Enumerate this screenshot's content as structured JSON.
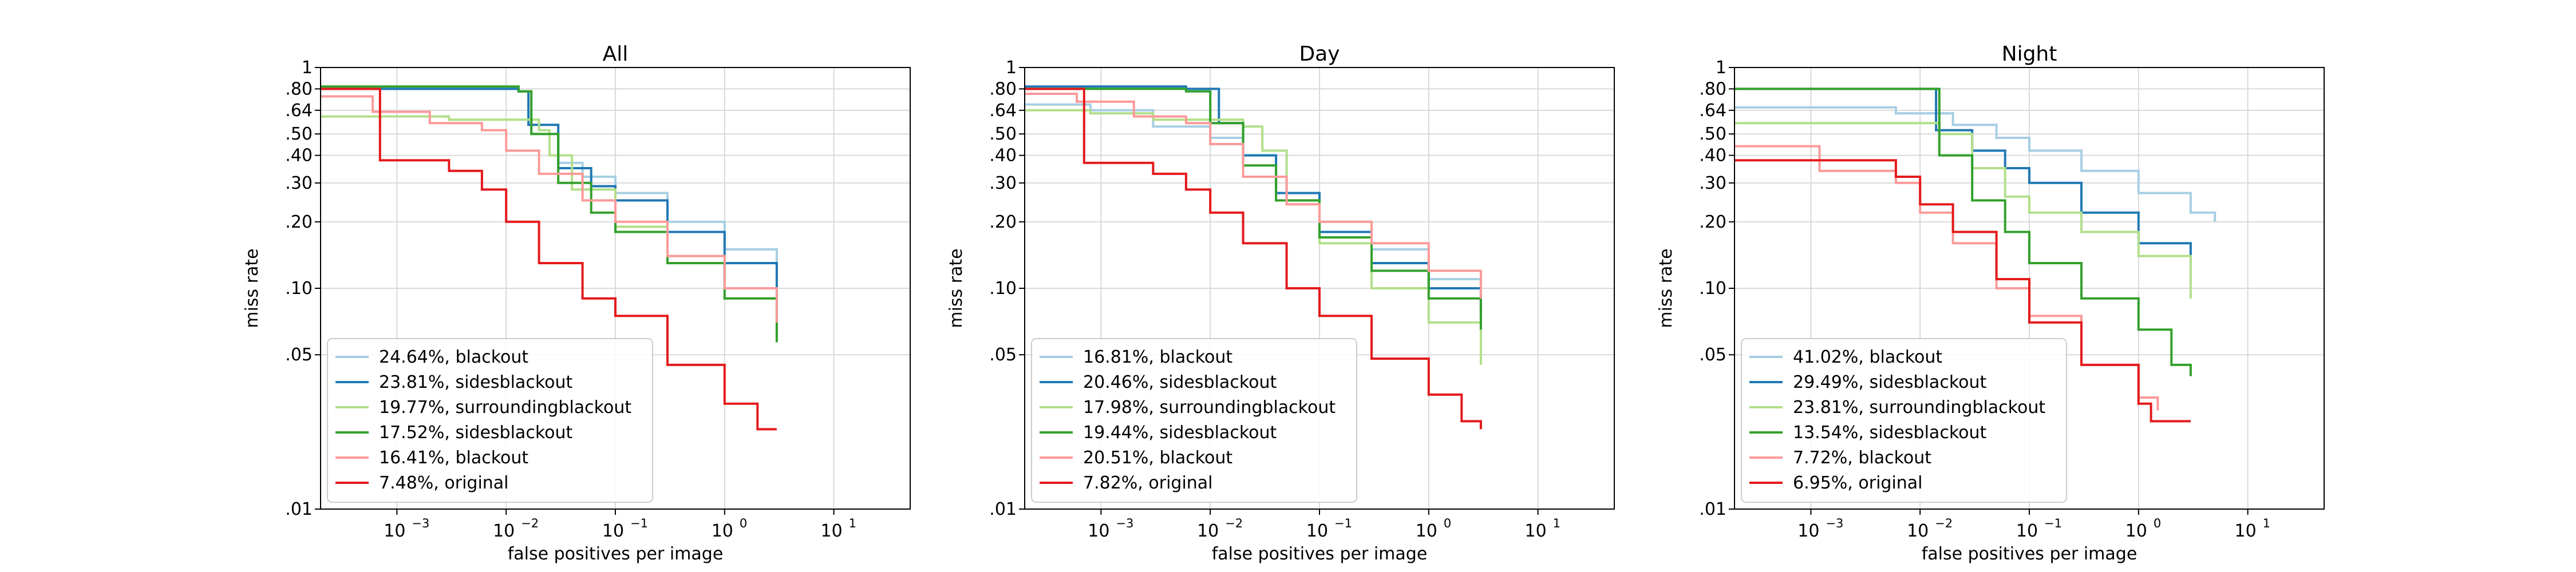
{
  "figure": {
    "colors": {
      "c1": "#a6cee3",
      "c2": "#1f78b4",
      "c3": "#b2df8a",
      "c4": "#33a02c",
      "c5": "#fb9a99",
      "c6": "#e31a1c",
      "grid": "#d9d9d9",
      "axes": "#000000"
    }
  },
  "chart_data": [
    {
      "type": "line",
      "title": "All",
      "xlabel": "false positives per image",
      "ylabel": "miss rate",
      "xscale": "log",
      "yscale": "log",
      "xlim": [
        0.0002,
        50
      ],
      "ylim": [
        0.01,
        1
      ],
      "x_tick_values": [
        0.001,
        0.01,
        0.1,
        1,
        10
      ],
      "x_tick_labels": [
        "10",
        "10",
        "10",
        "10",
        "10"
      ],
      "x_tick_exponents": [
        "−3",
        "−2",
        "−1",
        "0",
        "1"
      ],
      "y_tick_values": [
        0.01,
        0.05,
        0.1,
        0.2,
        0.3,
        0.4,
        0.5,
        0.64,
        0.8,
        1
      ],
      "y_tick_labels": [
        ".01",
        ".05",
        ".10",
        ".20",
        ".30",
        ".40",
        ".50",
        ".64",
        ".80",
        "1"
      ],
      "grid": true,
      "legend_position": "lower-left",
      "series": [
        {
          "label": "24.64%, blackout",
          "color": "#a6cee3",
          "x": [
            0.0002,
            0.013,
            0.017,
            0.03,
            0.05,
            0.1,
            0.3,
            1,
            3
          ],
          "y": [
            0.8,
            0.78,
            0.5,
            0.37,
            0.32,
            0.27,
            0.2,
            0.15,
            0.11
          ]
        },
        {
          "label": "23.81%, sidesblackout",
          "color": "#1f78b4",
          "x": [
            0.0002,
            0.013,
            0.016,
            0.03,
            0.06,
            0.1,
            0.3,
            1,
            3
          ],
          "y": [
            0.8,
            0.78,
            0.55,
            0.35,
            0.29,
            0.25,
            0.18,
            0.13,
            0.09
          ]
        },
        {
          "label": "19.77%, surroundingblackout",
          "color": "#b2df8a",
          "x": [
            0.0002,
            0.0004,
            0.003,
            0.02,
            0.025,
            0.04,
            0.1,
            0.3,
            1,
            3
          ],
          "y": [
            0.6,
            0.6,
            0.58,
            0.52,
            0.4,
            0.28,
            0.19,
            0.14,
            0.09,
            0.06
          ]
        },
        {
          "label": "17.52%, sidesblackout",
          "color": "#33a02c",
          "x": [
            0.0002,
            0.013,
            0.017,
            0.03,
            0.06,
            0.1,
            0.3,
            1,
            3
          ],
          "y": [
            0.82,
            0.78,
            0.5,
            0.3,
            0.22,
            0.18,
            0.13,
            0.09,
            0.057
          ]
        },
        {
          "label": "16.41%, blackout",
          "color": "#fb9a99",
          "x": [
            0.0002,
            0.0006,
            0.002,
            0.006,
            0.01,
            0.02,
            0.05,
            0.1,
            0.3,
            1,
            3
          ],
          "y": [
            0.74,
            0.63,
            0.56,
            0.52,
            0.42,
            0.33,
            0.25,
            0.2,
            0.14,
            0.1,
            0.07
          ]
        },
        {
          "label": "7.48%, original",
          "color": "#e31a1c",
          "x": [
            0.0002,
            0.0006,
            0.0007,
            0.003,
            0.006,
            0.01,
            0.02,
            0.05,
            0.1,
            0.3,
            1,
            2,
            3
          ],
          "y": [
            0.8,
            0.8,
            0.38,
            0.34,
            0.28,
            0.2,
            0.13,
            0.09,
            0.075,
            0.045,
            0.03,
            0.023,
            0.023
          ]
        }
      ]
    },
    {
      "type": "line",
      "title": "Day",
      "xlabel": "false positives per image",
      "ylabel": "miss rate",
      "xscale": "log",
      "yscale": "log",
      "xlim": [
        0.0002,
        50
      ],
      "ylim": [
        0.01,
        1
      ],
      "x_tick_values": [
        0.001,
        0.01,
        0.1,
        1,
        10
      ],
      "x_tick_labels": [
        "10",
        "10",
        "10",
        "10",
        "10"
      ],
      "x_tick_exponents": [
        "−3",
        "−2",
        "−1",
        "0",
        "1"
      ],
      "y_tick_values": [
        0.01,
        0.05,
        0.1,
        0.2,
        0.3,
        0.4,
        0.5,
        0.64,
        0.8,
        1
      ],
      "y_tick_labels": [
        ".01",
        ".05",
        ".10",
        ".20",
        ".30",
        ".40",
        ".50",
        ".64",
        ".80",
        "1"
      ],
      "grid": true,
      "legend_position": "lower-left",
      "series": [
        {
          "label": "16.81%, blackout",
          "color": "#a6cee3",
          "x": [
            0.0002,
            0.0008,
            0.003,
            0.01,
            0.02,
            0.04,
            0.1,
            0.3,
            1,
            3
          ],
          "y": [
            0.68,
            0.64,
            0.54,
            0.48,
            0.4,
            0.27,
            0.2,
            0.15,
            0.11,
            0.08
          ]
        },
        {
          "label": "20.46%, sidesblackout",
          "color": "#1f78b4",
          "x": [
            0.0002,
            0.006,
            0.012,
            0.02,
            0.04,
            0.1,
            0.3,
            1,
            3
          ],
          "y": [
            0.82,
            0.8,
            0.56,
            0.4,
            0.27,
            0.18,
            0.13,
            0.1,
            0.075
          ]
        },
        {
          "label": "17.98%, surroundingblackout",
          "color": "#b2df8a",
          "x": [
            0.0002,
            0.0008,
            0.003,
            0.02,
            0.03,
            0.05,
            0.1,
            0.3,
            1,
            3
          ],
          "y": [
            0.64,
            0.62,
            0.58,
            0.54,
            0.42,
            0.25,
            0.16,
            0.1,
            0.07,
            0.045
          ]
        },
        {
          "label": "19.44%, sidesblackout",
          "color": "#33a02c",
          "x": [
            0.0002,
            0.006,
            0.01,
            0.02,
            0.04,
            0.1,
            0.3,
            1,
            3
          ],
          "y": [
            0.8,
            0.78,
            0.56,
            0.36,
            0.25,
            0.17,
            0.12,
            0.09,
            0.065
          ]
        },
        {
          "label": "20.51%, blackout",
          "color": "#fb9a99",
          "x": [
            0.0002,
            0.0006,
            0.002,
            0.006,
            0.01,
            0.02,
            0.05,
            0.1,
            0.3,
            1,
            3
          ],
          "y": [
            0.76,
            0.7,
            0.6,
            0.56,
            0.45,
            0.32,
            0.24,
            0.2,
            0.16,
            0.12,
            0.09
          ]
        },
        {
          "label": "7.82%, original",
          "color": "#e31a1c",
          "x": [
            0.0002,
            0.0006,
            0.0007,
            0.003,
            0.006,
            0.01,
            0.02,
            0.05,
            0.1,
            0.3,
            1,
            2,
            3
          ],
          "y": [
            0.8,
            0.8,
            0.37,
            0.33,
            0.28,
            0.22,
            0.16,
            0.1,
            0.075,
            0.048,
            0.033,
            0.025,
            0.023
          ]
        }
      ]
    },
    {
      "type": "line",
      "title": "Night",
      "xlabel": "false positives per image",
      "ylabel": "miss rate",
      "xscale": "log",
      "yscale": "log",
      "xlim": [
        0.0002,
        50
      ],
      "ylim": [
        0.01,
        1
      ],
      "x_tick_values": [
        0.001,
        0.01,
        0.1,
        1,
        10
      ],
      "x_tick_labels": [
        "10",
        "10",
        "10",
        "10",
        "10"
      ],
      "x_tick_exponents": [
        "−3",
        "−2",
        "−1",
        "0",
        "1"
      ],
      "y_tick_values": [
        0.01,
        0.05,
        0.1,
        0.2,
        0.3,
        0.4,
        0.5,
        0.64,
        0.8,
        1
      ],
      "y_tick_labels": [
        ".01",
        ".05",
        ".10",
        ".20",
        ".30",
        ".40",
        ".50",
        ".64",
        ".80",
        "1"
      ],
      "grid": true,
      "legend_position": "lower-left",
      "series": [
        {
          "label": "41.02%, blackout",
          "color": "#a6cee3",
          "x": [
            0.0002,
            0.002,
            0.006,
            0.02,
            0.05,
            0.1,
            0.3,
            1,
            3,
            5
          ],
          "y": [
            0.66,
            0.66,
            0.62,
            0.55,
            0.48,
            0.42,
            0.34,
            0.27,
            0.22,
            0.2
          ]
        },
        {
          "label": "29.49%, sidesblackout",
          "color": "#1f78b4",
          "x": [
            0.0002,
            0.01,
            0.014,
            0.03,
            0.06,
            0.1,
            0.3,
            1,
            3
          ],
          "y": [
            0.8,
            0.8,
            0.52,
            0.42,
            0.35,
            0.3,
            0.22,
            0.16,
            0.13
          ]
        },
        {
          "label": "23.81%, surroundingblackout",
          "color": "#b2df8a",
          "x": [
            0.0002,
            0.002,
            0.015,
            0.03,
            0.06,
            0.1,
            0.3,
            1,
            3
          ],
          "y": [
            0.56,
            0.56,
            0.5,
            0.35,
            0.26,
            0.22,
            0.18,
            0.14,
            0.09
          ]
        },
        {
          "label": "13.54%, sidesblackout",
          "color": "#33a02c",
          "x": [
            0.0002,
            0.01,
            0.015,
            0.03,
            0.06,
            0.1,
            0.3,
            1,
            2,
            3
          ],
          "y": [
            0.8,
            0.8,
            0.4,
            0.25,
            0.18,
            0.13,
            0.09,
            0.065,
            0.045,
            0.04
          ]
        },
        {
          "label": "7.72%, blackout",
          "color": "#fb9a99",
          "x": [
            0.0002,
            0.001,
            0.0012,
            0.006,
            0.01,
            0.02,
            0.05,
            0.1,
            0.3,
            1,
            1.5
          ],
          "y": [
            0.44,
            0.44,
            0.34,
            0.3,
            0.22,
            0.16,
            0.1,
            0.075,
            0.045,
            0.032,
            0.028
          ]
        },
        {
          "label": "6.95%, original",
          "color": "#e31a1c",
          "x": [
            0.0002,
            0.004,
            0.006,
            0.01,
            0.02,
            0.05,
            0.1,
            0.3,
            1,
            1.3,
            3
          ],
          "y": [
            0.38,
            0.38,
            0.32,
            0.24,
            0.18,
            0.11,
            0.07,
            0.045,
            0.03,
            0.025,
            0.025
          ]
        }
      ]
    }
  ]
}
